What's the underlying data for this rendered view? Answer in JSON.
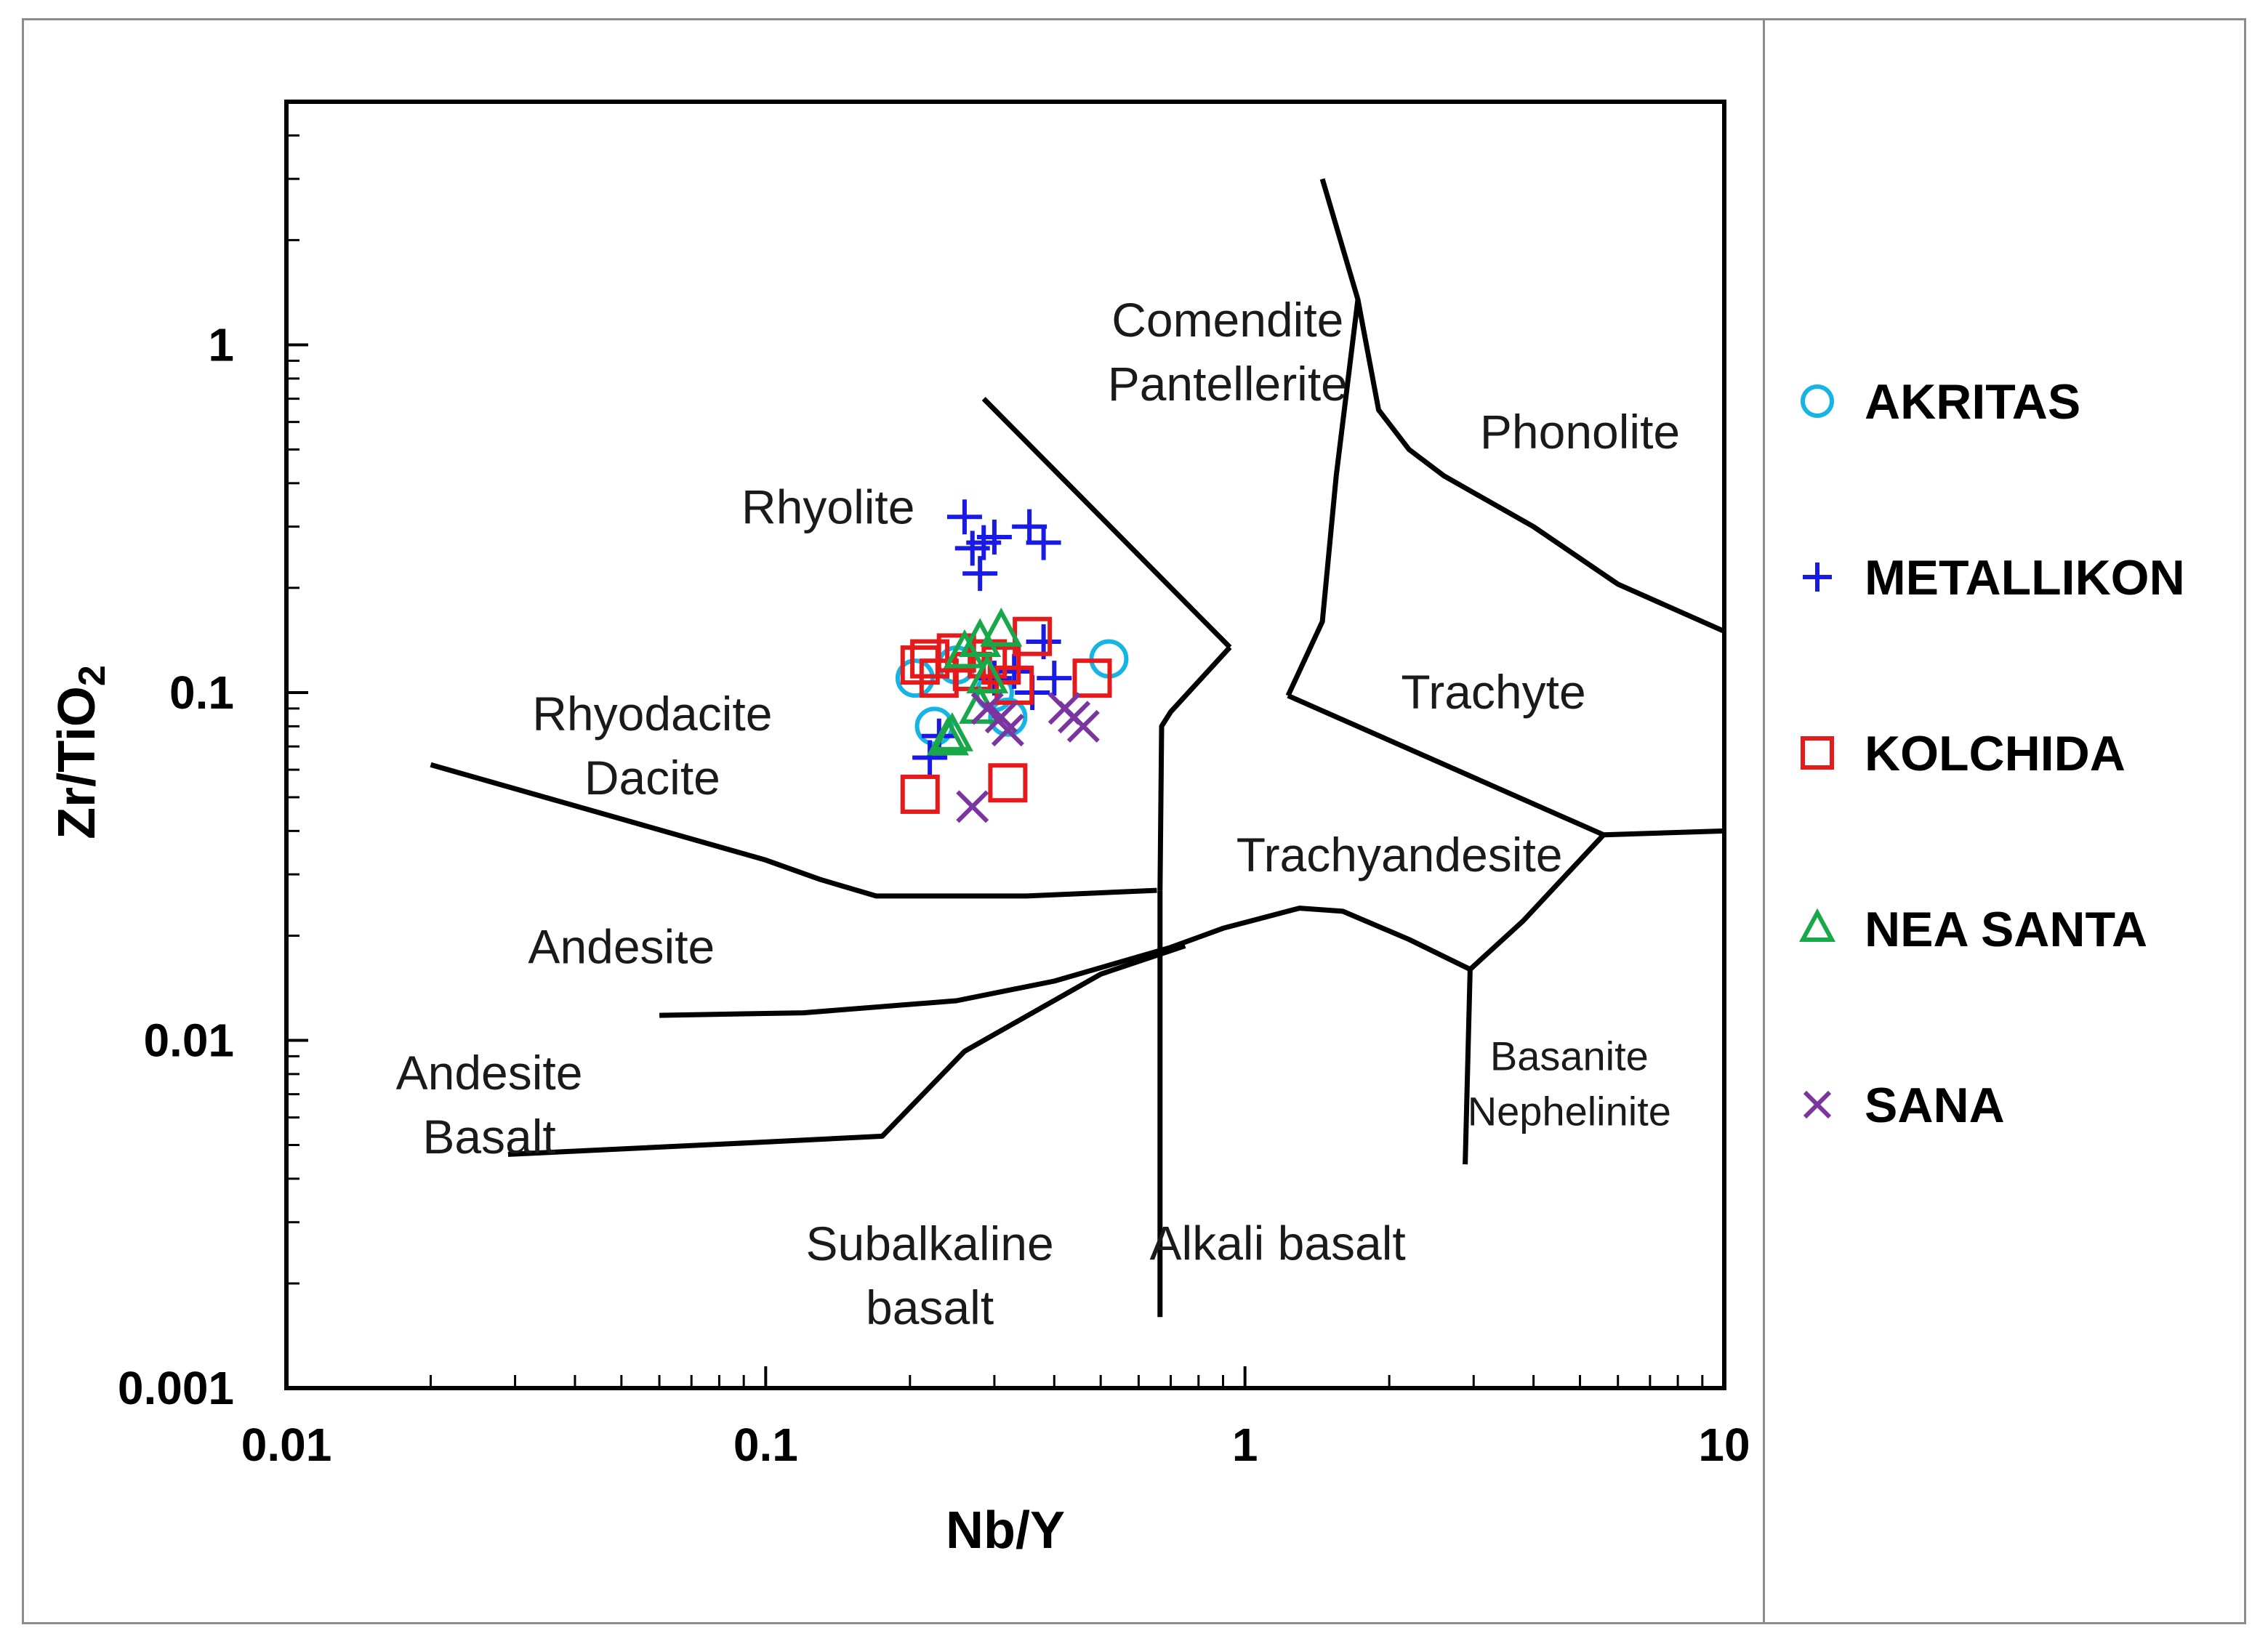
{
  "chart_data": {
    "type": "scatter",
    "xlabel": "Nb/Y",
    "ylabel": "Zr/TiO",
    "ylabel_subscript": "2",
    "xscale": "log",
    "yscale": "log",
    "xlim": [
      0.01,
      10
    ],
    "ylim": [
      0.001,
      5
    ],
    "x_ticks": [
      {
        "value": 0.01,
        "label": "0.01"
      },
      {
        "value": 0.1,
        "label": "0.1"
      },
      {
        "value": 1,
        "label": "1"
      },
      {
        "value": 10,
        "label": "10"
      }
    ],
    "y_ticks": [
      {
        "value": 0.001,
        "label": "0.001"
      },
      {
        "value": 0.01,
        "label": "0.01"
      },
      {
        "value": 0.1,
        "label": "0.1"
      },
      {
        "value": 1,
        "label": "1"
      }
    ],
    "fields": [
      {
        "id": "comendite",
        "lines": [
          "Comendite",
          "Pantellerite"
        ],
        "x": 0.92,
        "y": 0.95,
        "size": "normal"
      },
      {
        "id": "phonolite",
        "lines": [
          "Phonolite"
        ],
        "x": 5.0,
        "y": 0.56,
        "size": "normal"
      },
      {
        "id": "rhyolite",
        "lines": [
          "Rhyolite"
        ],
        "x": 0.135,
        "y": 0.34,
        "size": "normal"
      },
      {
        "id": "trachyte",
        "lines": [
          "Trachyte"
        ],
        "x": 3.3,
        "y": 0.1,
        "size": "normal"
      },
      {
        "id": "rhyodacite",
        "lines": [
          "Rhyodacite",
          "Dacite"
        ],
        "x": 0.058,
        "y": 0.07,
        "size": "normal"
      },
      {
        "id": "trachyandesite",
        "lines": [
          "Trachyandesite"
        ],
        "x": 2.1,
        "y": 0.034,
        "size": "normal"
      },
      {
        "id": "andesite",
        "lines": [
          "Andesite"
        ],
        "x": 0.05,
        "y": 0.0185,
        "size": "normal"
      },
      {
        "id": "andesite-basalt",
        "lines": [
          "Andesite",
          "Basalt"
        ],
        "x": 0.0265,
        "y": 0.0065,
        "size": "normal"
      },
      {
        "id": "basanite",
        "lines": [
          "Basanite",
          "Nephelinite"
        ],
        "x": 4.75,
        "y": 0.0076,
        "size": "small"
      },
      {
        "id": "subalkaline",
        "lines": [
          "Subalkaline",
          "basalt"
        ],
        "x": 0.22,
        "y": 0.0021,
        "size": "normal"
      },
      {
        "id": "alkali-basalt",
        "lines": [
          "Alkali basalt"
        ],
        "x": 1.17,
        "y": 0.0026,
        "size": "normal"
      }
    ],
    "boundaries": [
      {
        "id": "b-comendite-upper",
        "points": [
          [
            0.285,
            0.7
          ],
          [
            0.93,
            0.135
          ]
        ]
      },
      {
        "id": "b-rhyolite-phonolite",
        "points": [
          [
            1.45,
            3.0
          ],
          [
            1.72,
            1.35
          ],
          [
            1.9,
            0.65
          ],
          [
            2.2,
            0.5
          ],
          [
            2.6,
            0.42
          ],
          [
            4.0,
            0.3
          ],
          [
            6.0,
            0.205
          ],
          [
            10.0,
            0.15
          ]
        ]
      },
      {
        "id": "b-comendite-trachyte",
        "points": [
          [
            1.72,
            1.35
          ],
          [
            1.55,
            0.42
          ],
          [
            1.45,
            0.16
          ],
          [
            1.23,
            0.098
          ]
        ]
      },
      {
        "id": "b-dacite-trachy",
        "points": [
          [
            0.93,
            0.135
          ],
          [
            0.7,
            0.088
          ],
          [
            0.67,
            0.08
          ],
          [
            0.665,
            0.027
          ]
        ]
      },
      {
        "id": "b-trachyte-lower",
        "points": [
          [
            1.23,
            0.098
          ],
          [
            5.6,
            0.039
          ],
          [
            10.0,
            0.04
          ]
        ]
      },
      {
        "id": "b-rhyodacite-andesite",
        "points": [
          [
            0.02,
            0.062
          ],
          [
            0.1,
            0.033
          ],
          [
            0.13,
            0.029
          ],
          [
            0.17,
            0.026
          ],
          [
            0.22,
            0.026
          ],
          [
            0.35,
            0.026
          ],
          [
            0.655,
            0.027
          ]
        ]
      },
      {
        "id": "b-trachyandesite-lower",
        "points": [
          [
            0.06,
            0.0118
          ],
          [
            0.12,
            0.012
          ],
          [
            0.25,
            0.013
          ],
          [
            0.4,
            0.0148
          ],
          [
            0.7,
            0.0185
          ],
          [
            0.9,
            0.021
          ],
          [
            1.3,
            0.024
          ],
          [
            1.6,
            0.0235
          ],
          [
            2.2,
            0.0195
          ],
          [
            2.95,
            0.016
          ],
          [
            3.8,
            0.022
          ],
          [
            5.6,
            0.039
          ]
        ]
      },
      {
        "id": "b-alkali-vertical",
        "points": [
          [
            0.665,
            0.027
          ],
          [
            0.665,
            0.0016
          ]
        ]
      },
      {
        "id": "b-basanite-vertical",
        "points": [
          [
            2.95,
            0.016
          ],
          [
            2.88,
            0.0044
          ]
        ]
      },
      {
        "id": "b-andesite-basalt",
        "points": [
          [
            0.029,
            0.0047
          ],
          [
            0.1,
            0.0051
          ],
          [
            0.175,
            0.0053
          ],
          [
            0.26,
            0.0093
          ],
          [
            0.5,
            0.0155
          ],
          [
            0.75,
            0.0187
          ]
        ]
      }
    ],
    "series": [
      {
        "name": "AKRITAS",
        "marker": "circle",
        "color": "#16b4e4",
        "points": [
          [
            0.205,
            0.11
          ],
          [
            0.225,
            0.08
          ],
          [
            0.25,
            0.12
          ],
          [
            0.3,
            0.1
          ],
          [
            0.32,
            0.085
          ],
          [
            0.52,
            0.125
          ]
        ]
      },
      {
        "name": "METALLIKON",
        "marker": "plus",
        "color": "#1a1ae6",
        "points": [
          [
            0.26,
            0.32
          ],
          [
            0.27,
            0.26
          ],
          [
            0.285,
            0.27
          ],
          [
            0.3,
            0.28
          ],
          [
            0.355,
            0.3
          ],
          [
            0.38,
            0.27
          ],
          [
            0.28,
            0.22
          ],
          [
            0.22,
            0.065
          ],
          [
            0.23,
            0.075
          ],
          [
            0.3,
            0.11
          ],
          [
            0.33,
            0.115
          ],
          [
            0.38,
            0.14
          ],
          [
            0.36,
            0.1
          ],
          [
            0.4,
            0.11
          ]
        ]
      },
      {
        "name": "KOLCHIDA",
        "marker": "square",
        "color": "#e61a1a",
        "points": [
          [
            0.21,
            0.12
          ],
          [
            0.22,
            0.125
          ],
          [
            0.23,
            0.11
          ],
          [
            0.25,
            0.13
          ],
          [
            0.27,
            0.115
          ],
          [
            0.29,
            0.125
          ],
          [
            0.31,
            0.12
          ],
          [
            0.33,
            0.105
          ],
          [
            0.36,
            0.145
          ],
          [
            0.48,
            0.11
          ],
          [
            0.21,
            0.051
          ],
          [
            0.32,
            0.055
          ]
        ]
      },
      {
        "name": "NEA SANTA",
        "marker": "triangle",
        "color": "#18a84a",
        "points": [
          [
            0.26,
            0.13
          ],
          [
            0.28,
            0.14
          ],
          [
            0.31,
            0.15
          ],
          [
            0.29,
            0.11
          ],
          [
            0.28,
            0.09
          ],
          [
            0.245,
            0.075
          ],
          [
            0.24,
            0.073
          ]
        ]
      },
      {
        "name": "SANA",
        "marker": "cross",
        "color": "#7a35a0",
        "points": [
          [
            0.27,
            0.047
          ],
          [
            0.29,
            0.09
          ],
          [
            0.31,
            0.085
          ],
          [
            0.32,
            0.078
          ],
          [
            0.42,
            0.09
          ],
          [
            0.44,
            0.085
          ],
          [
            0.46,
            0.08
          ]
        ]
      }
    ],
    "legend": {
      "position": "right"
    }
  }
}
